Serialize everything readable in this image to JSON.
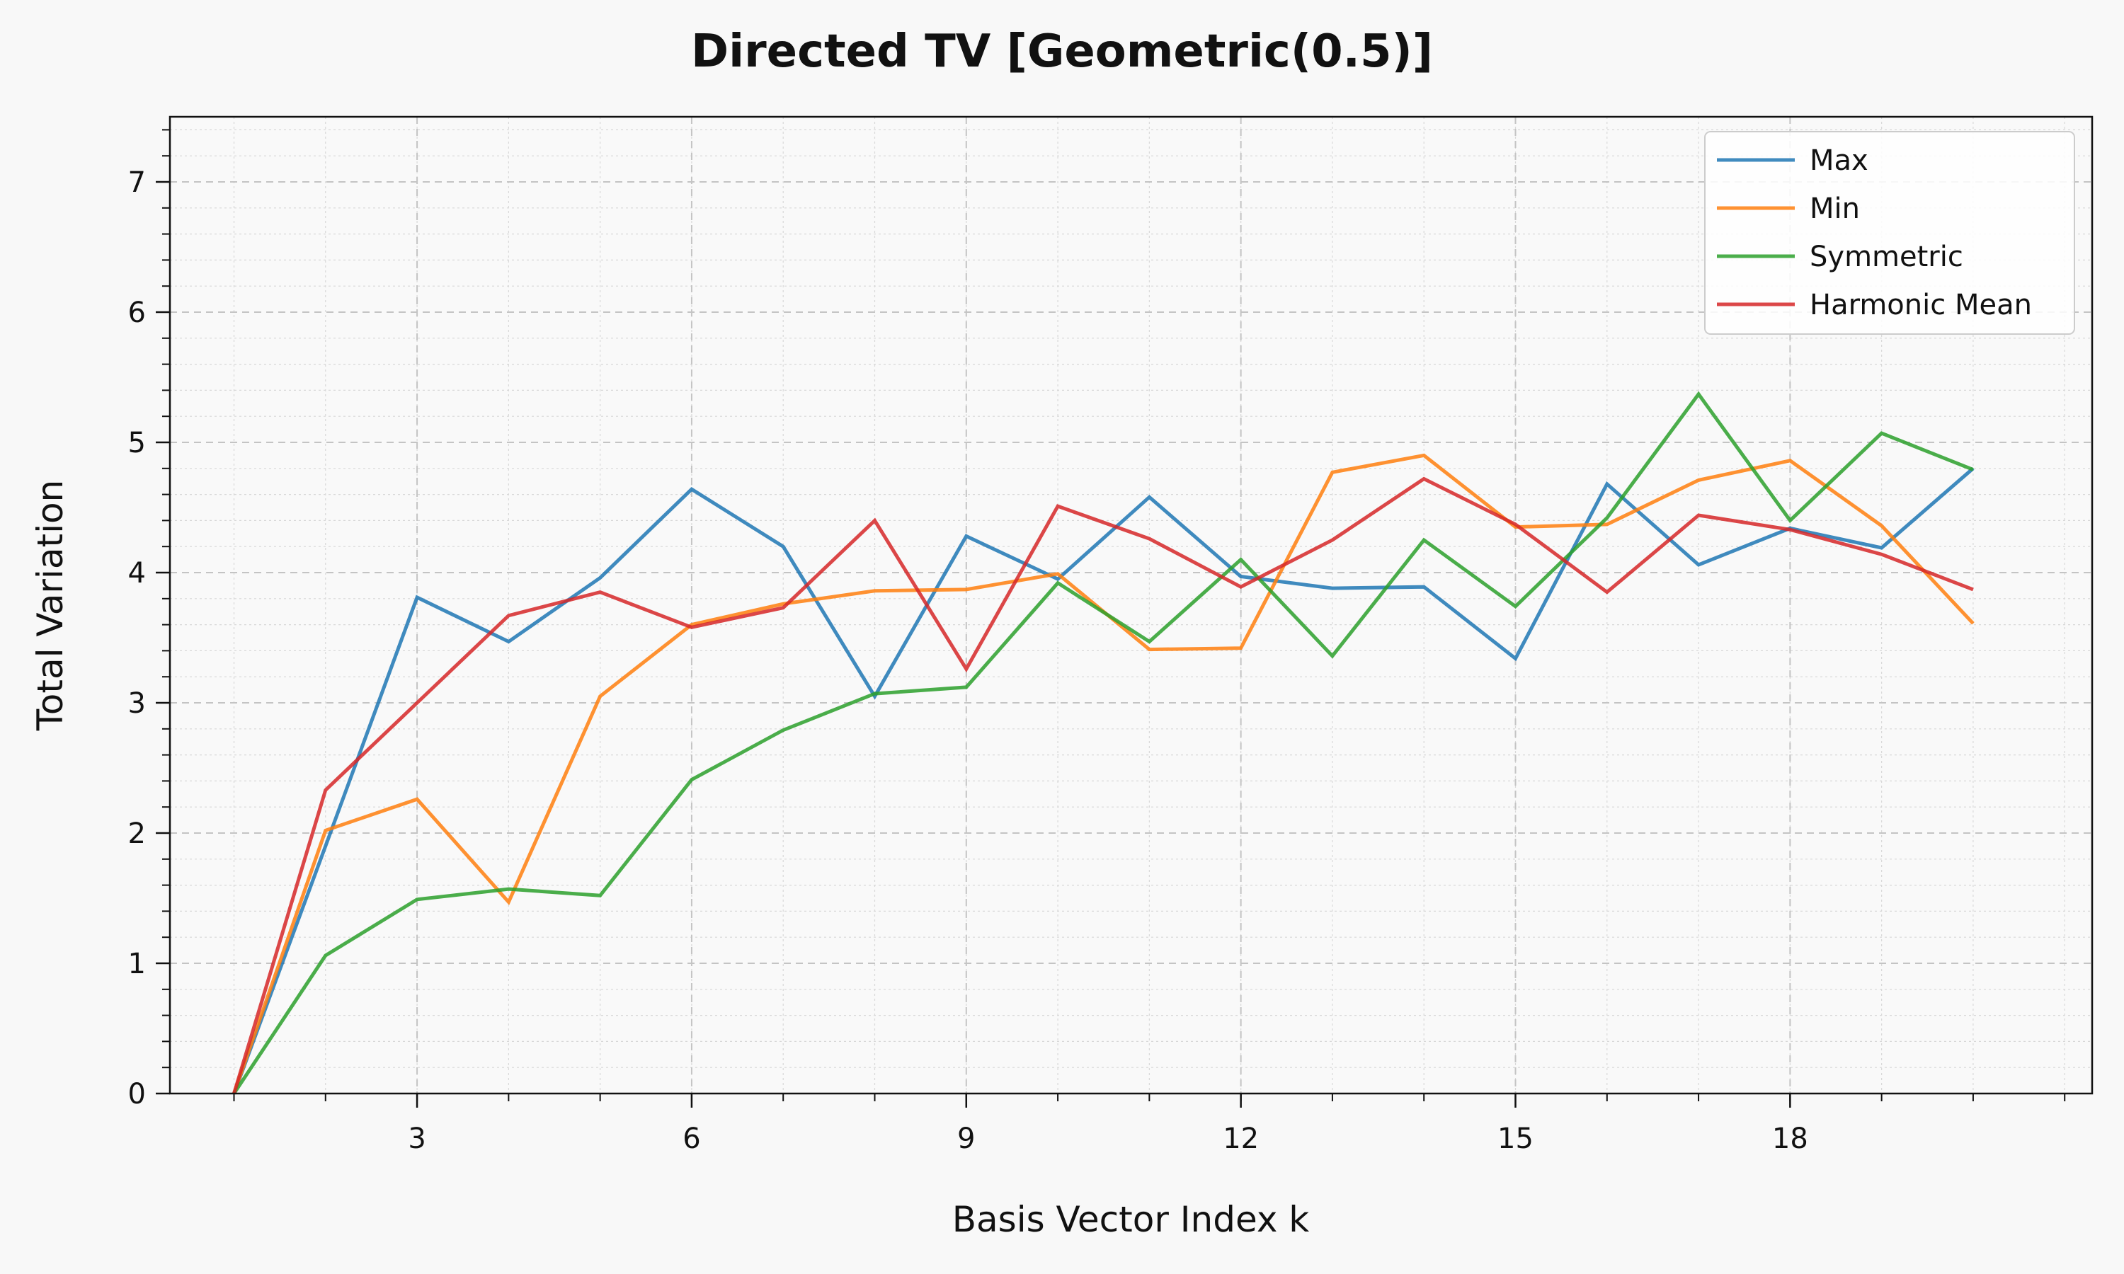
{
  "chart_data": {
    "type": "line",
    "title": "Directed TV [Geometric(0.5)]",
    "xlabel": "Basis Vector Index k",
    "ylabel": "Total Variation",
    "xlim": [
      0.3,
      21.3
    ],
    "ylim": [
      0,
      7.5
    ],
    "xticks": [
      3,
      6,
      9,
      12,
      15,
      18
    ],
    "yticks": [
      0,
      1,
      2,
      3,
      4,
      5,
      6,
      7
    ],
    "grid": true,
    "legend_position": "top-right",
    "x": [
      1,
      2,
      3,
      4,
      5,
      6,
      7,
      8,
      9,
      10,
      11,
      12,
      13,
      14,
      15,
      16,
      17,
      18,
      19,
      20
    ],
    "series": [
      {
        "name": "Max",
        "color": "#1f77b4",
        "values": [
          0.0,
          1.9,
          3.81,
          3.47,
          3.96,
          4.64,
          4.2,
          3.05,
          4.28,
          3.95,
          4.58,
          3.97,
          3.88,
          3.89,
          3.34,
          4.68,
          4.06,
          4.34,
          4.19,
          4.8
        ]
      },
      {
        "name": "Min",
        "color": "#ff7f0e",
        "values": [
          0.0,
          2.02,
          2.26,
          1.47,
          3.05,
          3.6,
          3.76,
          3.86,
          3.87,
          3.99,
          3.41,
          3.42,
          4.77,
          4.9,
          4.35,
          4.37,
          4.71,
          4.86,
          4.36,
          3.61
        ]
      },
      {
        "name": "Symmetric",
        "color": "#2ca02c",
        "values": [
          0.0,
          1.06,
          1.49,
          1.57,
          1.52,
          2.41,
          2.79,
          3.07,
          3.12,
          3.92,
          3.47,
          4.1,
          3.36,
          4.25,
          3.74,
          4.42,
          5.37,
          4.4,
          5.07,
          4.79
        ]
      },
      {
        "name": "Harmonic Mean",
        "color": "#d62728",
        "values": [
          0.0,
          2.33,
          3.0,
          3.67,
          3.85,
          3.58,
          3.73,
          4.4,
          3.26,
          4.51,
          4.26,
          3.89,
          4.25,
          4.72,
          4.37,
          3.85,
          4.44,
          4.33,
          4.14,
          3.87
        ]
      }
    ]
  }
}
